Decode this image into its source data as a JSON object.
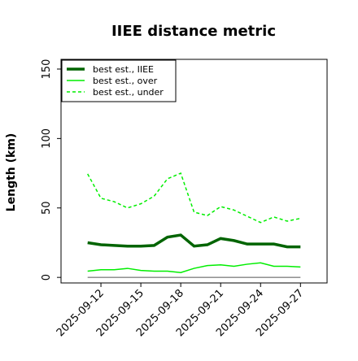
{
  "chart_data": {
    "type": "line",
    "title": "IIEE distance metric",
    "xlabel": "",
    "ylabel": "Length (km)",
    "ylim": [
      -4,
      157
    ],
    "xlim": [
      "2025-09-09",
      "2025-09-29"
    ],
    "yticks": [
      0,
      50,
      100,
      150
    ],
    "xticks": [
      "2025-09-12",
      "2025-09-15",
      "2025-09-18",
      "2025-09-21",
      "2025-09-24",
      "2025-09-27"
    ],
    "x": [
      "2025-09-11",
      "2025-09-12",
      "2025-09-13",
      "2025-09-14",
      "2025-09-15",
      "2025-09-16",
      "2025-09-17",
      "2025-09-18",
      "2025-09-19",
      "2025-09-20",
      "2025-09-21",
      "2025-09-22",
      "2025-09-23",
      "2025-09-24",
      "2025-09-25",
      "2025-09-26",
      "2025-09-27"
    ],
    "grid": false,
    "legend_position": "top-left",
    "series": [
      {
        "name": "best est., IIEE",
        "color": "#006400",
        "style": "solid",
        "width": 3.5,
        "values": [
          25.0,
          23.5,
          23.0,
          22.5,
          22.5,
          23.0,
          29.0,
          30.5,
          22.5,
          23.5,
          28.0,
          26.5,
          24.0,
          24.0,
          24.0,
          22.0,
          22.0
        ]
      },
      {
        "name": "best est., over",
        "color": "#00ee00",
        "style": "solid",
        "width": 1.5,
        "values": [
          4.5,
          5.5,
          5.5,
          6.5,
          5.0,
          4.5,
          4.5,
          3.5,
          6.5,
          8.5,
          9.0,
          8.0,
          9.5,
          10.5,
          8.0,
          8.0,
          7.5
        ]
      },
      {
        "name": "best est., under",
        "color": "#00ee00",
        "style": "dashed",
        "width": 1.5,
        "values": [
          74.5,
          57.0,
          54.5,
          50.0,
          53.0,
          58.5,
          71.0,
          75.0,
          47.0,
          44.5,
          51.0,
          48.5,
          44.0,
          39.5,
          43.5,
          40.5,
          42.5
        ]
      },
      {
        "name": "",
        "color": "#555555",
        "style": "solid",
        "width": 1,
        "values": [
          0,
          0,
          0,
          0,
          0,
          0,
          0,
          0,
          0,
          0,
          0,
          0,
          0,
          0,
          0,
          0,
          0
        ]
      }
    ]
  }
}
